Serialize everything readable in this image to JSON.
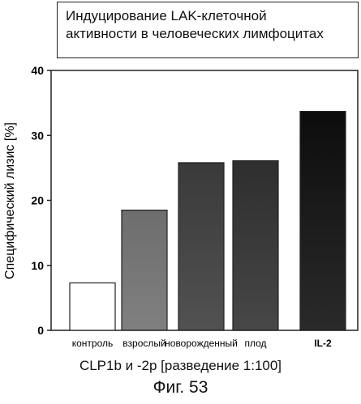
{
  "chart_data": {
    "type": "bar",
    "title_lines": [
      "Индуцирование LAK-клеточной",
      "активности в человеческих лимфоцитах"
    ],
    "ylabel": "Специфический лизис [%]",
    "xlabel": "CLP1b  и -2p [разведение 1:100]",
    "ylim": [
      0,
      40
    ],
    "yticks": [
      0,
      10,
      20,
      30,
      40
    ],
    "categories": [
      "контроль",
      "взрослый",
      "новорожденный",
      "плод",
      "IL-2"
    ],
    "values": [
      7.3,
      18.5,
      25.8,
      26.1,
      33.7
    ],
    "bar_colors": [
      "#ffffff",
      "#6e6e6e",
      "#3a3a3a",
      "#2e2e2e",
      "#0d0d0d"
    ],
    "grid": false
  },
  "caption": "Фиг. 53"
}
